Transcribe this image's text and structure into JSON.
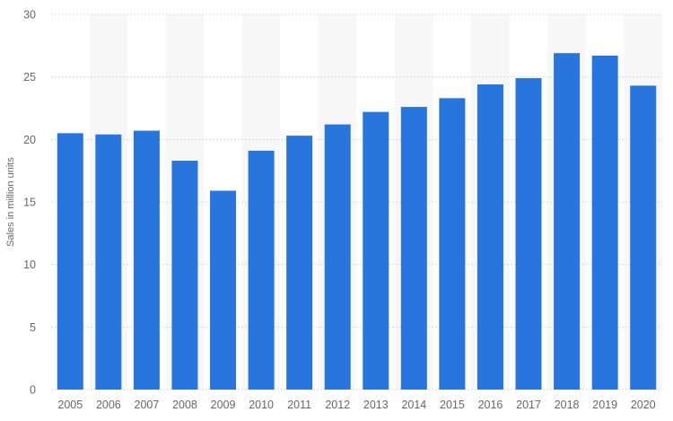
{
  "chart_data": {
    "type": "bar",
    "categories": [
      "2005",
      "2006",
      "2007",
      "2008",
      "2009",
      "2010",
      "2011",
      "2012",
      "2013",
      "2014",
      "2015",
      "2016",
      "2017",
      "2018",
      "2019",
      "2020"
    ],
    "values": [
      20.5,
      20.4,
      20.7,
      18.3,
      15.9,
      19.1,
      20.3,
      21.2,
      22.2,
      22.6,
      23.3,
      24.4,
      24.9,
      26.9,
      26.7,
      24.3
    ],
    "title": "",
    "xlabel": "",
    "ylabel": "Sales in million units",
    "ylim": [
      0,
      30
    ],
    "yticks": [
      0,
      5,
      10,
      15,
      20,
      25,
      30
    ],
    "grid": true,
    "alternating_bands": true,
    "bar_color": "#2876dd",
    "band_color": "#f7f7f7"
  }
}
